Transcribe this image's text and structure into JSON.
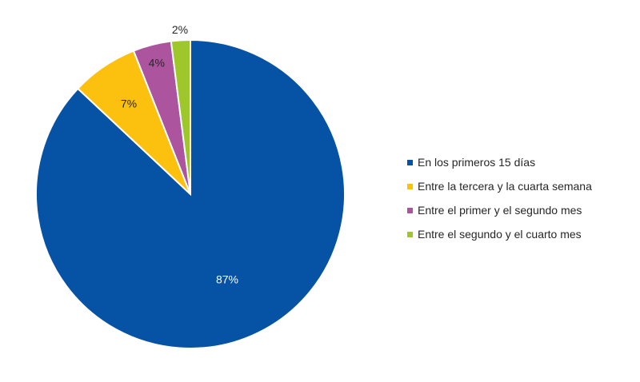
{
  "chart_data": {
    "type": "pie",
    "categories": [
      "En los primeros 15 días",
      "Entre la tercera y la cuarta semana",
      "Entre el primer y el segundo mes",
      "Entre el segundo y el cuarto mes"
    ],
    "values": [
      87,
      7,
      4,
      2
    ],
    "labels": [
      "87%",
      "7%",
      "4%",
      "2%"
    ],
    "colors": [
      "#0652a4",
      "#fcc10f",
      "#ad549f",
      "#9dc72a"
    ],
    "label_colors": [
      "#ffffff",
      "#262626",
      "#262626",
      "#262626"
    ],
    "start_angle_deg": 0,
    "direction": "clockwise",
    "legend_position": "right"
  }
}
